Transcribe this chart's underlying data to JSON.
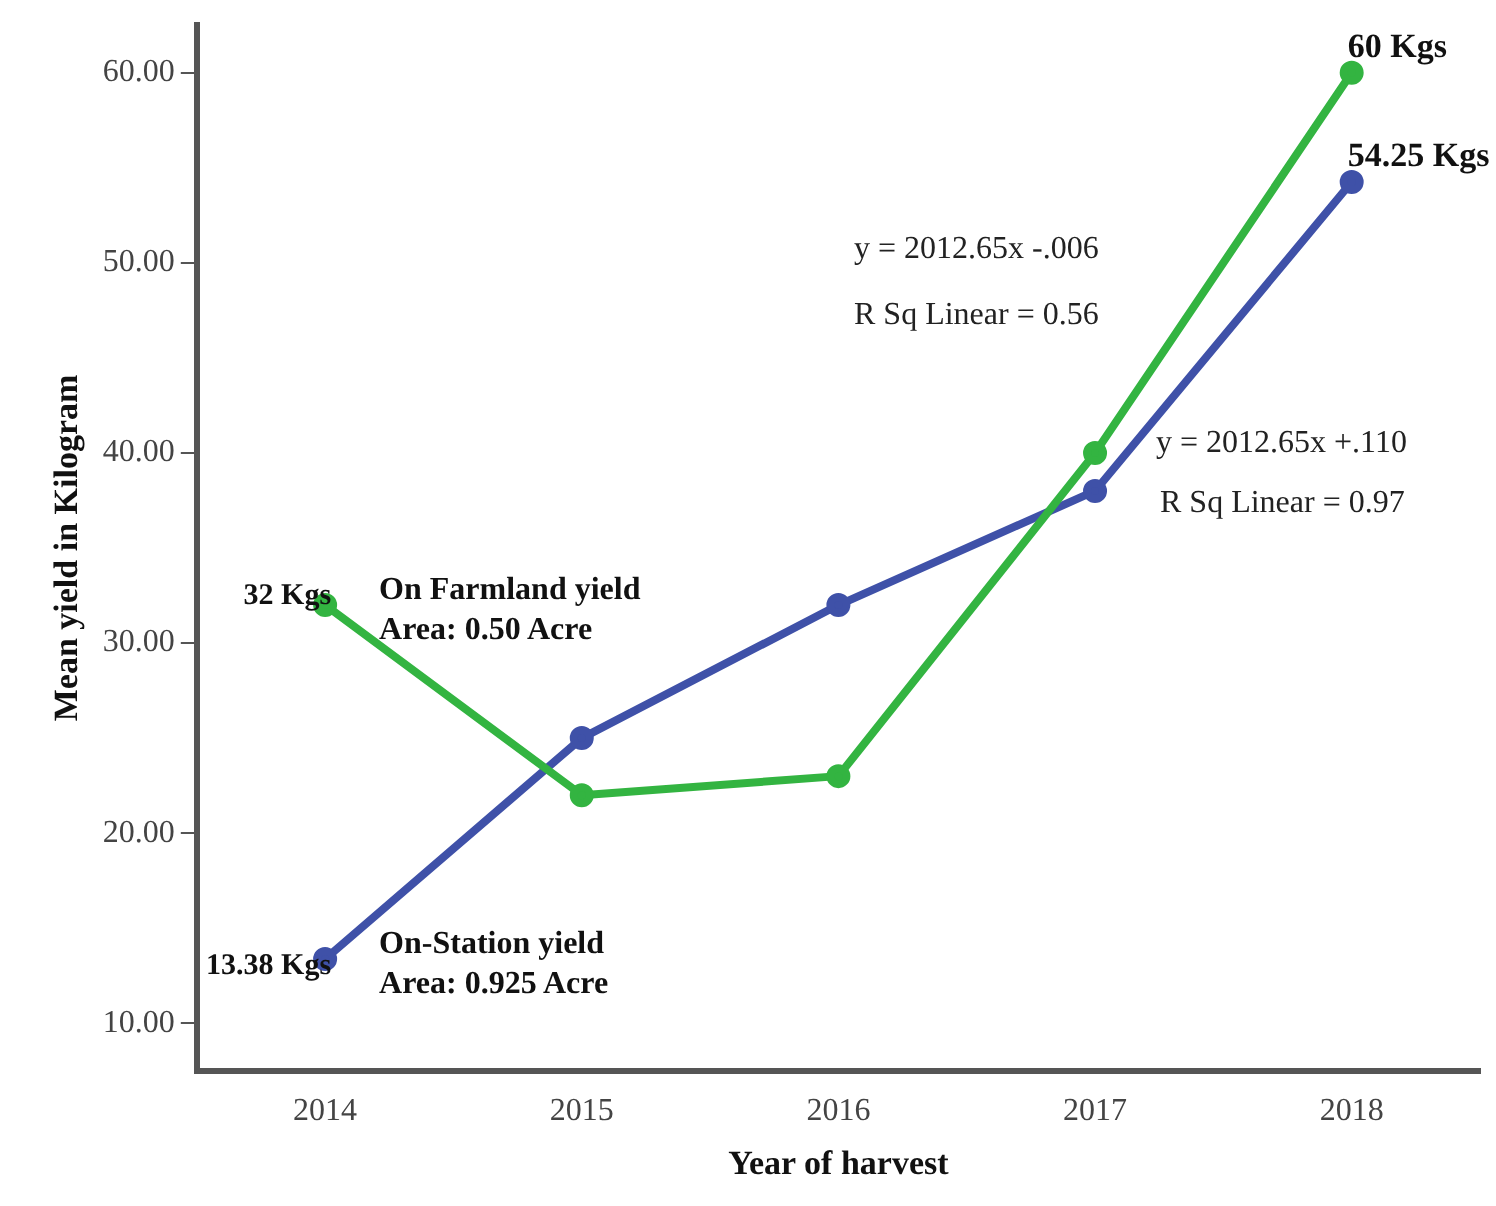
{
  "chart_data": {
    "type": "line",
    "xlabel": "Year of harvest",
    "ylabel": "Mean yield in Kilogram",
    "categories": [
      "2014",
      "2015",
      "2016",
      "2017",
      "2018"
    ],
    "series": [
      {
        "name": "On Farmland yield\nArea: 0.50 Acre",
        "color": "#33b441",
        "values": [
          32,
          22,
          23,
          40,
          60
        ],
        "value_labels": [
          "32 Kgs",
          null,
          null,
          null,
          "60 Kgs"
        ]
      },
      {
        "name": "On-Station yield\nArea: 0.925 Acre",
        "color": "#3f51a8",
        "values": [
          13.38,
          25,
          32,
          38,
          54.25
        ],
        "value_labels": [
          "13.38 Kgs",
          null,
          null,
          null,
          "54.25 Kgs"
        ]
      }
    ],
    "ylim": [
      7.5,
      62.5
    ],
    "yticks": [
      {
        "value": 10,
        "label": "10.00"
      },
      {
        "value": 20,
        "label": "20.00"
      },
      {
        "value": 30,
        "label": "30.00"
      },
      {
        "value": 40,
        "label": "40.00"
      },
      {
        "value": 50,
        "label": "50.00"
      },
      {
        "value": 60,
        "label": "60.00"
      }
    ],
    "annotations": [
      "y = 2012.65x -.006",
      "R Sq Linear = 0.56",
      "y = 2012.65x +.110",
      "R Sq Linear = 0.97"
    ],
    "grid": false,
    "legend": false,
    "marker": "circle",
    "line_style": "solid"
  }
}
